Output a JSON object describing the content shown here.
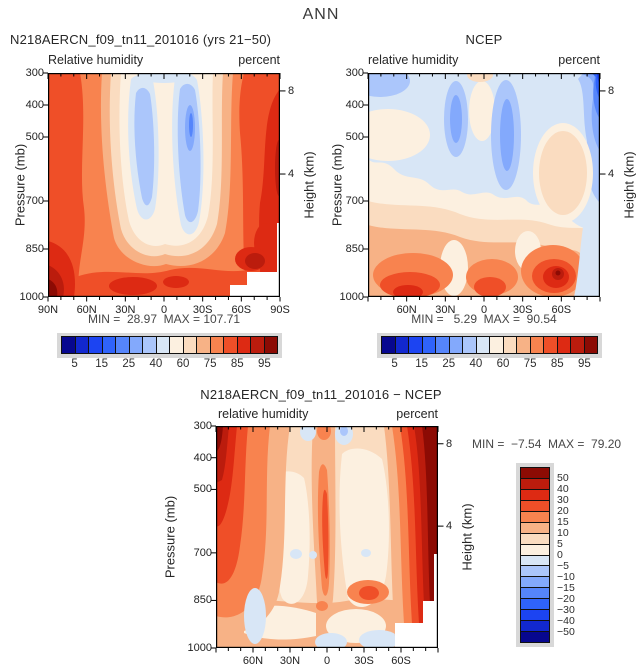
{
  "page_title": "ANN",
  "palette": {
    "colors": [
      "#07078f",
      "#1228cf",
      "#1c44f2",
      "#2f63fb",
      "#5585fb",
      "#83a9fc",
      "#abc6fb",
      "#d8e6f6",
      "#fcf0e0",
      "#fadcc0",
      "#f7b286",
      "#f8834f",
      "#ef4f28",
      "#dd2a13",
      "#bb1c0d",
      "#8c0b04"
    ],
    "missing_data_color": "#ffffff",
    "labelbar_backing_color": "#d8d8d8"
  },
  "panels": {
    "left": {
      "title": "N218AERCN_f09_tn11_201016 (yrs 21−50)",
      "var_label": "Relative humidity",
      "units_label": "percent",
      "ylabel": "Pressure (mb)",
      "ylabel_right": "Height (km)",
      "yticks": [
        "300",
        "400",
        "500",
        "700",
        "850",
        "1000"
      ],
      "height_ticks": [
        "8",
        "4"
      ],
      "xticks": [
        "90N",
        "60N",
        "30N",
        "0",
        "30S",
        "60S",
        "90S"
      ],
      "stats": "MIN =  28.97  MAX = 107.71",
      "cb_labels": [
        "5",
        "15",
        "25",
        "40",
        "60",
        "75",
        "85",
        "95"
      ]
    },
    "right": {
      "title": "NCEP",
      "var_label": "relative humidity",
      "units_label": "percent",
      "ylabel": "Pressure (mb)",
      "ylabel_right": "Height (km)",
      "yticks": [
        "300",
        "400",
        "500",
        "700",
        "850",
        "1000"
      ],
      "height_ticks": [
        "8",
        "4"
      ],
      "xticks": [
        "60N",
        "30N",
        "0",
        "30S",
        "60S"
      ],
      "stats": "MIN =   5.29  MAX =  90.54",
      "cb_labels": [
        "5",
        "15",
        "25",
        "40",
        "60",
        "75",
        "85",
        "95"
      ]
    },
    "diff": {
      "title": "N218AERCN_f09_tn11_201016 − NCEP",
      "var_label": "relative humidity",
      "units_label": "percent",
      "ylabel": "Pressure (mb)",
      "ylabel_right": "Height (km)",
      "yticks": [
        "300",
        "400",
        "500",
        "700",
        "850",
        "1000"
      ],
      "height_ticks": [
        "8",
        "4"
      ],
      "xticks": [
        "60N",
        "30N",
        "0",
        "30S",
        "60S"
      ],
      "stats": "MIN =  −7.54  MAX =  79.20",
      "cb_labels": [
        "50",
        "40",
        "30",
        "20",
        "15",
        "10",
        "5",
        "0",
        "−5",
        "−10",
        "−15",
        "−20",
        "−30",
        "−40",
        "−50"
      ]
    }
  },
  "chart_data": [
    {
      "type": "heatmap",
      "title": "N218AERCN_f09_tn11_201016 (yrs 21−50)",
      "subtitle_left": "Relative humidity",
      "subtitle_right": "percent",
      "xlabel": "Latitude",
      "ylabel": "Pressure (mb)",
      "ylabel_right": "Height (km)",
      "x": [
        "90N",
        "60N",
        "30N",
        "0",
        "30S",
        "60S",
        "90S"
      ],
      "y": [
        300,
        400,
        500,
        700,
        850,
        1000
      ],
      "values": [
        [
          75,
          70,
          55,
          60,
          50,
          70,
          80
        ],
        [
          80,
          65,
          42,
          55,
          38,
          70,
          85
        ],
        [
          78,
          60,
          40,
          55,
          35,
          70,
          90
        ],
        [
          80,
          65,
          45,
          60,
          45,
          75,
          95
        ],
        [
          85,
          75,
          60,
          70,
          65,
          85,
          100
        ],
        [
          100,
          85,
          80,
          85,
          85,
          95,
          null
        ]
      ],
      "contour_levels": [
        5,
        10,
        15,
        20,
        25,
        30,
        40,
        50,
        60,
        70,
        75,
        80,
        85,
        90,
        95
      ],
      "min": 28.97,
      "max": 107.71,
      "legend_position": "bottom",
      "grid": false
    },
    {
      "type": "heatmap",
      "title": "NCEP",
      "subtitle_left": "relative humidity",
      "subtitle_right": "percent",
      "xlabel": "Latitude",
      "ylabel": "Pressure (mb)",
      "ylabel_right": "Height (km)",
      "x": [
        "90N",
        "60N",
        "30N",
        "0",
        "30S",
        "60S",
        "90S"
      ],
      "y": [
        300,
        400,
        500,
        700,
        850,
        1000
      ],
      "values": [
        [
          45,
          45,
          40,
          45,
          40,
          35,
          15
        ],
        [
          50,
          48,
          30,
          42,
          32,
          38,
          20
        ],
        [
          55,
          52,
          32,
          45,
          35,
          42,
          25
        ],
        [
          60,
          65,
          45,
          55,
          45,
          55,
          35
        ],
        [
          70,
          80,
          60,
          65,
          60,
          80,
          45
        ],
        [
          80,
          88,
          75,
          82,
          80,
          90,
          50
        ]
      ],
      "contour_levels": [
        5,
        10,
        15,
        20,
        25,
        30,
        40,
        50,
        60,
        70,
        75,
        80,
        85,
        90,
        95
      ],
      "min": 5.29,
      "max": 90.54,
      "legend_position": "bottom",
      "grid": false
    },
    {
      "type": "heatmap",
      "title": "N218AERCN_f09_tn11_201016 − NCEP",
      "subtitle_left": "relative humidity",
      "subtitle_right": "percent",
      "xlabel": "Latitude",
      "ylabel": "Pressure (mb)",
      "ylabel_right": "Height (km)",
      "x": [
        "90N",
        "60N",
        "30N",
        "0",
        "30S",
        "60S",
        "90S"
      ],
      "y": [
        300,
        400,
        500,
        700,
        850,
        1000
      ],
      "values": [
        [
          30,
          25,
          15,
          15,
          10,
          35,
          65
        ],
        [
          30,
          18,
          12,
          13,
          6,
          32,
          65
        ],
        [
          25,
          8,
          8,
          10,
          2,
          28,
          65
        ],
        [
          20,
          2,
          0,
          5,
          0,
          20,
          60
        ],
        [
          15,
          -3,
          0,
          5,
          5,
          8,
          55
        ],
        [
          20,
          -2,
          3,
          2,
          5,
          3,
          null
        ]
      ],
      "contour_levels": [
        -50,
        -40,
        -30,
        -20,
        -15,
        -10,
        -5,
        0,
        5,
        10,
        15,
        20,
        30,
        40,
        50
      ],
      "min": -7.54,
      "max": 79.2,
      "legend_position": "right",
      "grid": false
    }
  ]
}
